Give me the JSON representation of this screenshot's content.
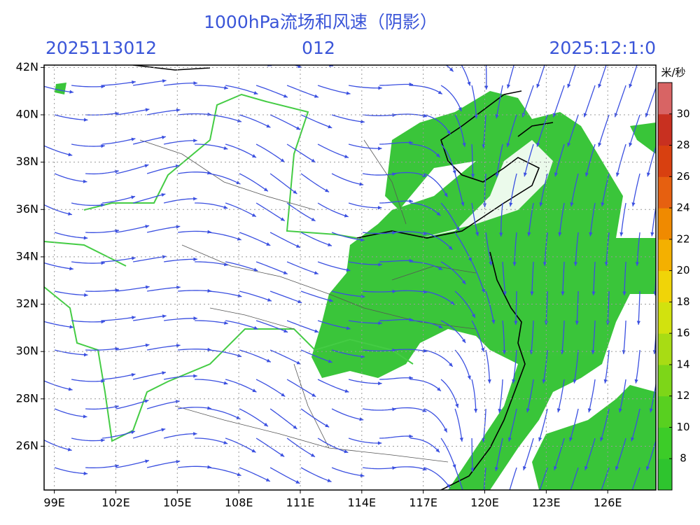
{
  "header": {
    "title": "1000hPa流场和风速（阴影）",
    "init_time": "2025113012",
    "forecast_hour": "012",
    "valid_time": "2025:12:1:0"
  },
  "map": {
    "xlim": [
      98.5,
      128.35
    ],
    "ylim": [
      24.15,
      42.1
    ],
    "xticks": [
      {
        "value": 99,
        "label": "99E"
      },
      {
        "value": 102,
        "label": "102E"
      },
      {
        "value": 105,
        "label": "105E"
      },
      {
        "value": 108,
        "label": "108E"
      },
      {
        "value": 111,
        "label": "111E"
      },
      {
        "value": 114,
        "label": "114E"
      },
      {
        "value": 117,
        "label": "117E"
      },
      {
        "value": 120,
        "label": "120E"
      },
      {
        "value": 123,
        "label": "123E"
      },
      {
        "value": 126,
        "label": "126E"
      }
    ],
    "yticks": [
      {
        "value": 42,
        "label": "42N"
      },
      {
        "value": 40,
        "label": "40N"
      },
      {
        "value": 38,
        "label": "38N"
      },
      {
        "value": 36,
        "label": "36N"
      },
      {
        "value": 34,
        "label": "34N"
      },
      {
        "value": 32,
        "label": "32N"
      },
      {
        "value": 30,
        "label": "30N"
      },
      {
        "value": 28,
        "label": "28N"
      },
      {
        "value": 26,
        "label": "26N"
      }
    ]
  },
  "colorbar": {
    "unit": "米/秒",
    "range": [
      6,
      32
    ],
    "ticks": [
      8,
      10,
      12,
      14,
      16,
      18,
      20,
      22,
      24,
      26,
      28,
      30
    ],
    "colors": [
      "#2ec42e",
      "#3ccc28",
      "#58d020",
      "#7dd618",
      "#a8dc14",
      "#d2e20e",
      "#f0d408",
      "#f4b000",
      "#f08a00",
      "#e66010",
      "#d84010",
      "#c83020",
      "#d86464"
    ]
  }
}
